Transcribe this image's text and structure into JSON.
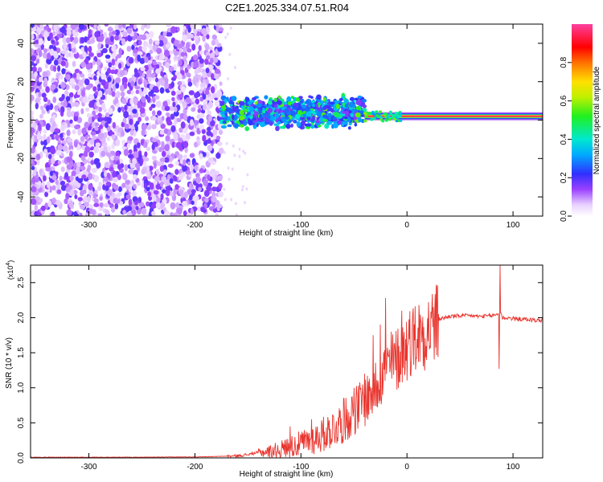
{
  "title": "C2E1.2025.334.07.51.R04",
  "chart_data": [
    {
      "type": "heatmap",
      "title": "C2E1.2025.334.07.51.R04",
      "xlabel": "Height of straight line (km)",
      "ylabel": "Frequency (Hz)",
      "xlim": [
        -355,
        128
      ],
      "ylim": [
        -50,
        50
      ],
      "xticks": [
        -300,
        -200,
        -100,
        0,
        100
      ],
      "yticks": [
        -40,
        -20,
        0,
        20,
        40
      ],
      "xticklabels": [
        "-300",
        "-200",
        "-100",
        "0",
        "100"
      ],
      "yticklabels": [
        "-40",
        "-20",
        "0",
        "20",
        "40"
      ],
      "colorbar": {
        "label": "Normalized spectral amplitude",
        "range": [
          0.0,
          1.0
        ],
        "ticks": [
          0.0,
          0.2,
          0.4,
          0.6,
          0.8
        ],
        "ticklabels": [
          "0.0",
          "0.2",
          "0.4",
          "0.6",
          "0.8"
        ]
      },
      "regions": [
        {
          "x_from": -355,
          "x_to": -175,
          "description": "broadband noise across all frequencies",
          "typical_amplitude": 0.15
        },
        {
          "x_from": -175,
          "x_to": -40,
          "description": "scattered signal near 0 to 10 Hz",
          "center_freq": 4,
          "typical_amplitude": 0.35
        },
        {
          "x_from": -40,
          "x_to": 128,
          "description": "narrow strong line near 2 Hz",
          "center_freq": 2,
          "typical_amplitude": 0.95
        }
      ],
      "colors": {
        "low": "#8a2be2",
        "mid": "#00e0e0",
        "high": "#ff0000"
      }
    },
    {
      "type": "line",
      "xlabel": "Height of straight line (km)",
      "ylabel": "SNR (10 * v/v)",
      "yexponent_label": "(x10",
      "yexponent_power": "4",
      "yexponent_close": ")",
      "xlim": [
        -355,
        128
      ],
      "ylim": [
        0,
        2.75
      ],
      "xticks": [
        -300,
        -200,
        -100,
        0,
        100
      ],
      "yticks": [
        0.0,
        0.5,
        1.0,
        1.5,
        2.0,
        2.5
      ],
      "xticklabels": [
        "-300",
        "-200",
        "-100",
        "0",
        "100"
      ],
      "yticklabels": [
        "0.0",
        "0.5",
        "1.0",
        "1.5",
        "2.0",
        "2.5"
      ],
      "series": [
        {
          "name": "SNR",
          "color": "#e8352e",
          "x": [
            -355,
            -300,
            -250,
            -200,
            -180,
            -160,
            -150,
            -140,
            -130,
            -120,
            -110,
            -100,
            -90,
            -80,
            -70,
            -60,
            -50,
            -40,
            -30,
            -25,
            -20,
            -15,
            -10,
            -5,
            0,
            5,
            10,
            15,
            20,
            25,
            30,
            40,
            50,
            60,
            70,
            80,
            85,
            88,
            90,
            95,
            100,
            110,
            120,
            128
          ],
          "y": [
            0.01,
            0.01,
            0.01,
            0.015,
            0.02,
            0.03,
            0.05,
            0.08,
            0.1,
            0.13,
            0.18,
            0.22,
            0.28,
            0.35,
            0.45,
            0.55,
            0.7,
            0.85,
            1.05,
            1.2,
            1.3,
            1.35,
            1.45,
            1.55,
            1.65,
            1.75,
            1.8,
            1.85,
            1.9,
            1.95,
            1.98,
            2.02,
            2.03,
            2.03,
            2.02,
            2.03,
            2.05,
            2.1,
            2.0,
            2.0,
            1.99,
            1.98,
            1.97,
            1.96
          ],
          "spikes": [
            {
              "x": -110,
              "y": 0.45
            },
            {
              "x": -90,
              "y": 0.55
            },
            {
              "x": -60,
              "y": 0.85
            },
            {
              "x": -50,
              "y": 1.0
            },
            {
              "x": -40,
              "y": 1.2
            },
            {
              "x": -32,
              "y": 1.75
            },
            {
              "x": -25,
              "y": 1.9
            },
            {
              "x": -20,
              "y": 2.28
            },
            {
              "x": -15,
              "y": 1.8
            },
            {
              "x": -5,
              "y": 2.1
            },
            {
              "x": 5,
              "y": 1.9
            },
            {
              "x": 25,
              "y": 2.15
            },
            {
              "x": 88,
              "y": 2.75
            },
            {
              "x": 87,
              "y": 1.27
            }
          ]
        }
      ]
    }
  ]
}
